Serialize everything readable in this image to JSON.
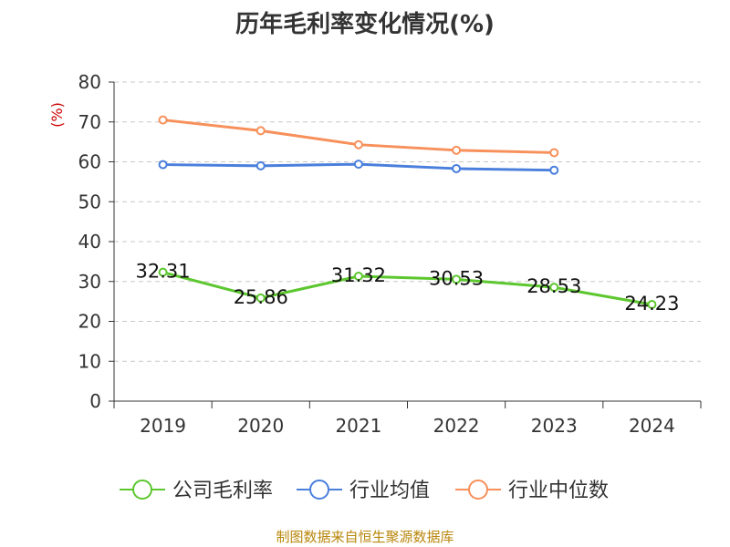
{
  "title": "历年毛利率变化情况(%)",
  "source": "制图数据来自恒生聚源数据库",
  "chart_data": {
    "type": "line",
    "title": "历年毛利率变化情况(%)",
    "ylabel": "(%)",
    "xlabel": "",
    "categories": [
      "2019",
      "2020",
      "2021",
      "2022",
      "2023",
      "2024"
    ],
    "ylim": [
      0,
      80
    ],
    "yticks": [
      0,
      10,
      20,
      30,
      40,
      50,
      60,
      70,
      80
    ],
    "grid": true,
    "legend_position": "bottom",
    "series": [
      {
        "name": "公司毛利率",
        "color": "#5cc72e",
        "values": [
          32.31,
          25.86,
          31.32,
          30.53,
          28.53,
          24.23
        ],
        "labels": [
          "32.31",
          "25.86",
          "31.32",
          "30.53",
          "28.53",
          "24.23"
        ]
      },
      {
        "name": "行业均值",
        "color": "#4a7fdc",
        "values": [
          59.3,
          59.0,
          59.4,
          58.3,
          57.9,
          null
        ]
      },
      {
        "name": "行业中位数",
        "color": "#f7905a",
        "values": [
          70.5,
          67.8,
          64.3,
          62.9,
          62.3,
          null
        ]
      }
    ]
  }
}
